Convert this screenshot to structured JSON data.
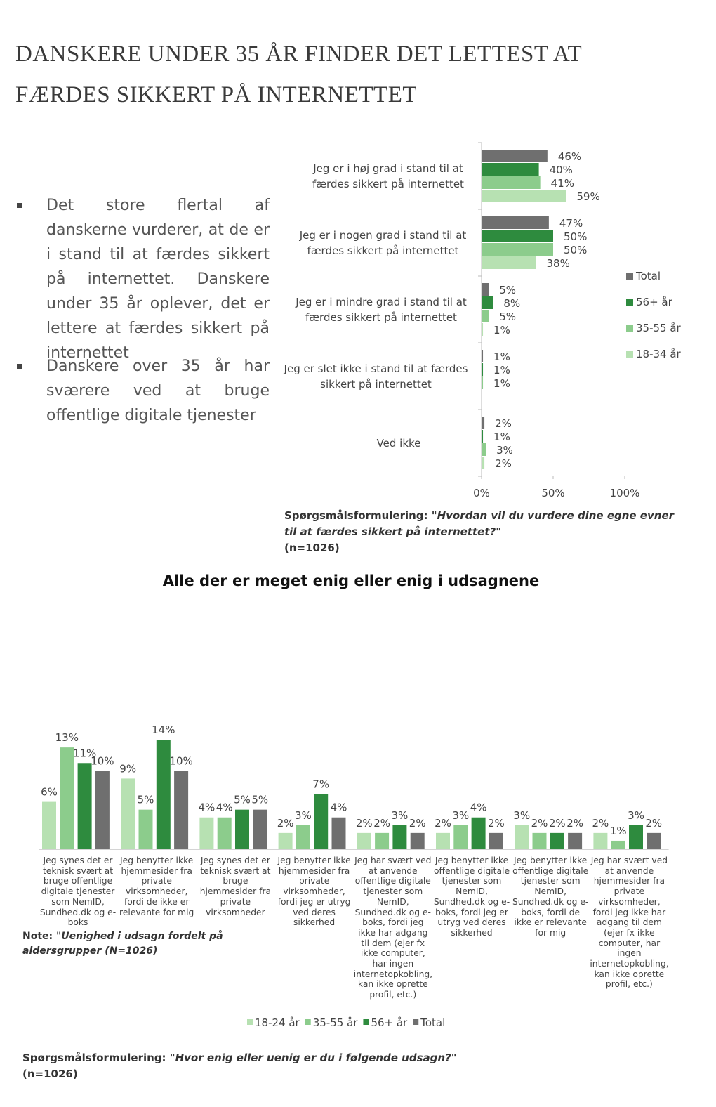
{
  "title": "DANSKERE UNDER 35 ÅR FINDER DET LETTEST AT FÆRDES SIKKERT PÅ INTERNETTET",
  "bullets": [
    "Det store flertal af danskerne vurderer, at de er i stand til at færdes sikkert på internettet. Danskere under 35 år oplever, det er lettere at færdes sikkert på internettet",
    "Danskere over 35 år har sværere ved at bruge offentlige digitale tjenester"
  ],
  "question_1": {
    "label": "Spørgsmålsformulering:",
    "text": "\"Hvordan vil du vurdere dine egne evner til at færdes sikkert på internettet?\"",
    "n": "(n=1026)"
  },
  "chart_data": [
    {
      "type": "hbar",
      "categories": [
        "Jeg er i høj grad i stand til at færdes sikkert på internettet",
        "Jeg er i nogen grad i stand til at færdes sikkert på internettet",
        "Jeg er i mindre grad i stand til at færdes sikkert på internettet",
        "Jeg er slet ikke i stand til at færdes sikkert på internettet",
        "Ved ikke"
      ],
      "series": [
        {
          "name": "Total",
          "color": "#6f6f6f",
          "values": [
            46,
            47,
            5,
            1,
            2
          ],
          "value_labels": [
            "46%",
            "47%",
            "5%",
            "1%",
            "2%"
          ]
        },
        {
          "name": "56+ år",
          "color": "#2e8b3e",
          "values": [
            40,
            50,
            8,
            1,
            1
          ],
          "value_labels": [
            "40%",
            "50%",
            "8%",
            "1%",
            "1%"
          ]
        },
        {
          "name": "35-55 år",
          "color": "#8ccc8c",
          "values": [
            41,
            50,
            5,
            1,
            3
          ],
          "value_labels": [
            "41%",
            "50%",
            "5%",
            "1%",
            "3%"
          ]
        },
        {
          "name": "18-34 år",
          "color": "#b7e1b2",
          "values": [
            59,
            38,
            1,
            null,
            2
          ],
          "value_labels": [
            "59%",
            "38%",
            "1%",
            null,
            "2%"
          ]
        }
      ],
      "xlim": [
        0,
        100
      ],
      "xticks": [
        {
          "value": 0,
          "label": "0%"
        },
        {
          "value": 50,
          "label": "50%"
        },
        {
          "value": 100,
          "label": "100%"
        }
      ],
      "legend": "right"
    },
    {
      "type": "bar",
      "title": "Alle der er meget enig eller enig i udsagnene",
      "categories": [
        "Jeg synes det er teknisk svært at bruge offentlige digitale tjenester som NemID, Sundhed.dk og e-boks",
        "Jeg benytter ikke hjemmesider fra private virksomheder, fordi de ikke er relevante for mig",
        "Jeg synes det er teknisk svært at bruge hjemmesider fra private virksomheder",
        "Jeg benytter ikke hjemmesider fra private virksomheder, fordi jeg er utryg ved deres sikkerhed",
        "Jeg har svært ved at anvende offentlige digitale tjenester som NemID, Sundhed.dk og e-boks, fordi jeg ikke har adgang til dem (ejer fx ikke computer, har ingen internetopkobling, kan ikke oprette profil, etc.)",
        "Jeg benytter ikke offentlige digitale tjenester som NemID, Sundhed.dk og e-boks, fordi jeg er utryg ved deres sikkerhed",
        "Jeg benytter ikke offentlige digitale tjenester som NemID, Sundhed.dk og e-boks, fordi de ikke er relevante for mig",
        "Jeg har svært ved at anvende hjemmesider fra private virksomheder, fordi jeg ikke har adgang til dem (ejer fx ikke computer, har ingen internetopkobling, kan ikke oprette profil, etc.)"
      ],
      "series": [
        {
          "name": "18-24 år",
          "color": "#b7e1b2",
          "values": [
            6,
            9,
            4,
            2,
            2,
            2,
            3,
            2
          ],
          "value_labels": [
            "6%",
            "9%",
            "4%",
            "2%",
            "2%",
            "2%",
            "3%",
            "2%"
          ]
        },
        {
          "name": "35-55 år",
          "color": "#8ccc8c",
          "values": [
            13,
            5,
            4,
            3,
            2,
            3,
            2,
            1
          ],
          "value_labels": [
            "13%",
            "5%",
            "4%",
            "3%",
            "2%",
            "3%",
            "2%",
            "1%"
          ]
        },
        {
          "name": "56+ år",
          "color": "#2e8b3e",
          "values": [
            11,
            14,
            5,
            7,
            3,
            4,
            2,
            3
          ],
          "value_labels": [
            "11%",
            "14%",
            "5%",
            "7%",
            "3%",
            "4%",
            "2%",
            "3%"
          ]
        },
        {
          "name": "Total",
          "color": "#6f6f6f",
          "values": [
            10,
            10,
            5,
            4,
            2,
            2,
            2,
            2
          ],
          "value_labels": [
            "10%",
            "10%",
            "5%",
            "4%",
            "2%",
            "2%",
            "2%",
            "2%"
          ]
        }
      ],
      "ylim": [
        0,
        15
      ],
      "legend": "bottom"
    }
  ],
  "note": {
    "label": "Note:",
    "text": "\"Uenighed i udsagn fordelt på aldersgrupper (N=1026)"
  },
  "question_2": {
    "label": "Spørgsmålsformulering:",
    "text": "\"Hvor enig eller uenig er du i følgende udsagn?\"",
    "n": "(n=1026)"
  }
}
